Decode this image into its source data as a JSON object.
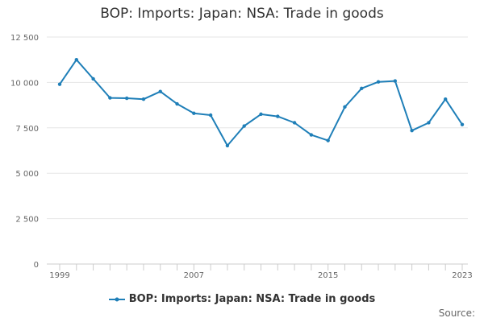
{
  "colors": {
    "series": "#1f7fb8",
    "grid": "#e6e6e6",
    "axis": "#cccccc"
  },
  "chart_data": {
    "type": "line",
    "title": "BOP: Imports: Japan: NSA: Trade in goods",
    "xlabel": "",
    "ylabel": "",
    "x": [
      1999,
      2000,
      2001,
      2002,
      2003,
      2004,
      2005,
      2006,
      2007,
      2008,
      2009,
      2010,
      2011,
      2012,
      2013,
      2014,
      2015,
      2016,
      2017,
      2018,
      2019,
      2020,
      2021,
      2022,
      2023
    ],
    "series": [
      {
        "name": "BOP: Imports: Japan: NSA: Trade in goods",
        "values": [
          9900,
          11250,
          10200,
          9150,
          9130,
          9080,
          9500,
          8820,
          8300,
          8200,
          6520,
          7600,
          8250,
          8130,
          7780,
          7110,
          6800,
          8650,
          9670,
          10030,
          10080,
          7350,
          7780,
          9080,
          7680
        ]
      }
    ],
    "ylim": [
      0,
      12500
    ],
    "yticks": [
      0,
      2500,
      5000,
      7500,
      10000,
      12500
    ],
    "ytick_labels": [
      "0",
      "2 500",
      "5 000",
      "7 500",
      "10 000",
      "12 500"
    ],
    "xticks_labeled": [
      1999,
      2007,
      2015,
      2023
    ],
    "grid": true,
    "legend": "bottom-center"
  },
  "source_label": "Source:"
}
